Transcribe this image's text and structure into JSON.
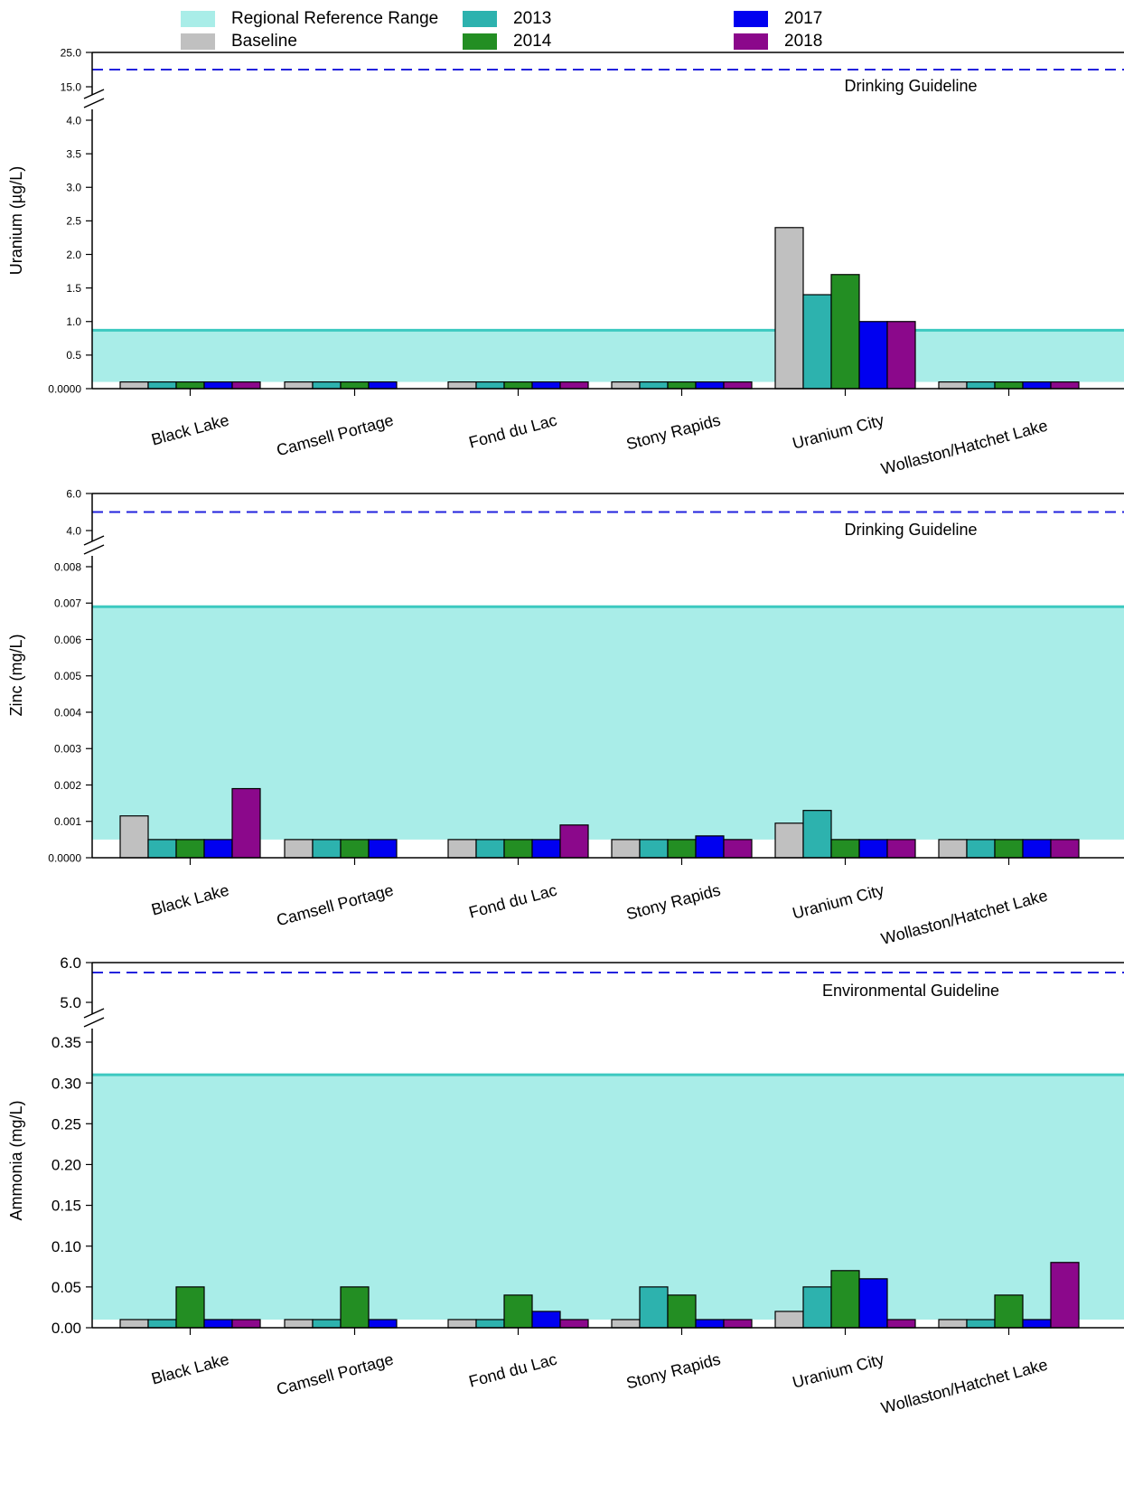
{
  "legend": {
    "items": [
      {
        "label": "Regional Reference Range",
        "color": "#A9EDE8"
      },
      {
        "label": "Baseline",
        "color": "#C0C0C0"
      },
      {
        "label": "2013",
        "color": "#2DB2AE"
      },
      {
        "label": "2014",
        "color": "#238E23"
      },
      {
        "label": "2017",
        "color": "#0000F0"
      },
      {
        "label": "2018",
        "color": "#8B088B"
      }
    ]
  },
  "colors": {
    "reference_fill": "#A9EDE8",
    "reference_line": "#3CC9C0",
    "guideline_line": "#2222DD"
  },
  "chart_data": [
    {
      "type": "bar",
      "ylabel": "Uranium (µg/L)",
      "categories": [
        "Black Lake",
        "Camsell Portage",
        "Fond du Lac",
        "Stony Rapids",
        "Uranium City",
        "Wollaston/Hatchet Lake"
      ],
      "series": [
        {
          "name": "Baseline",
          "values": [
            0.1,
            0.1,
            0.1,
            0.1,
            2.4,
            0.1
          ]
        },
        {
          "name": "2013",
          "values": [
            0.1,
            0.1,
            0.1,
            0.1,
            1.4,
            0.1
          ]
        },
        {
          "name": "2014",
          "values": [
            0.1,
            0.1,
            0.1,
            0.1,
            1.7,
            0.1
          ]
        },
        {
          "name": "2017",
          "values": [
            0.1,
            0.1,
            0.1,
            0.1,
            1.0,
            0.1
          ]
        },
        {
          "name": "2018",
          "values": [
            0.1,
            null,
            0.1,
            0.1,
            1.0,
            0.1
          ]
        }
      ],
      "reference_range": [
        0.1,
        0.87
      ],
      "guideline": {
        "label": "Drinking Guideline",
        "value": 20
      },
      "ylim_lower": [
        0,
        4.0
      ],
      "ylim_upper": [
        15.0,
        25.0
      ],
      "yticks_lower": [
        "0.0000",
        "0.5",
        "1.0",
        "1.5",
        "2.0",
        "2.5",
        "3.0",
        "3.5",
        "4.0"
      ],
      "yticks_upper": [
        "15.0",
        "25.0"
      ],
      "axis_break": true
    },
    {
      "type": "bar",
      "ylabel": "Zinc (mg/L)",
      "categories": [
        "Black Lake",
        "Camsell Portage",
        "Fond du Lac",
        "Stony Rapids",
        "Uranium City",
        "Wollaston/Hatchet Lake"
      ],
      "series": [
        {
          "name": "Baseline",
          "values": [
            0.00115,
            0.0005,
            0.0005,
            0.0005,
            0.00095,
            0.0005
          ]
        },
        {
          "name": "2013",
          "values": [
            0.0005,
            0.0005,
            0.0005,
            0.0005,
            0.0013,
            0.0005
          ]
        },
        {
          "name": "2014",
          "values": [
            0.0005,
            0.0005,
            0.0005,
            0.0005,
            0.0005,
            0.0005
          ]
        },
        {
          "name": "2017",
          "values": [
            0.0005,
            0.0005,
            0.0005,
            0.0006,
            0.0005,
            0.0005
          ]
        },
        {
          "name": "2018",
          "values": [
            0.0019,
            null,
            0.0009,
            0.0005,
            0.0005,
            0.0005
          ]
        }
      ],
      "reference_range": [
        0.0005,
        0.0069
      ],
      "guideline": {
        "label": "Drinking Guideline",
        "value": 5.0
      },
      "ylim_lower": [
        0,
        0.008
      ],
      "ylim_upper": [
        4.0,
        6.0
      ],
      "yticks_lower": [
        "0.0000",
        "0.001",
        "0.002",
        "0.003",
        "0.004",
        "0.005",
        "0.006",
        "0.007",
        "0.008"
      ],
      "yticks_upper": [
        "4.0",
        "6.0"
      ],
      "axis_break": true
    },
    {
      "type": "bar",
      "ylabel": "Ammonia (mg/L)",
      "categories": [
        "Black Lake",
        "Camsell Portage",
        "Fond du Lac",
        "Stony Rapids",
        "Uranium City",
        "Wollaston/Hatchet Lake"
      ],
      "series": [
        {
          "name": "Baseline",
          "values": [
            0.01,
            0.01,
            0.01,
            0.01,
            0.02,
            0.01
          ]
        },
        {
          "name": "2013",
          "values": [
            0.01,
            0.01,
            0.01,
            0.05,
            0.05,
            0.01
          ]
        },
        {
          "name": "2014",
          "values": [
            0.05,
            0.05,
            0.04,
            0.04,
            0.07,
            0.04
          ]
        },
        {
          "name": "2017",
          "values": [
            0.01,
            0.01,
            0.02,
            0.01,
            0.06,
            0.01
          ]
        },
        {
          "name": "2018",
          "values": [
            0.01,
            null,
            0.01,
            0.01,
            0.01,
            0.08
          ]
        }
      ],
      "reference_range": [
        0.01,
        0.31
      ],
      "guideline": {
        "label": "Environmental Guideline",
        "value": 5.75
      },
      "ylim_lower": [
        0,
        0.35
      ],
      "ylim_upper": [
        5.0,
        6.0
      ],
      "yticks_lower": [
        "0.00",
        "0.05",
        "0.10",
        "0.15",
        "0.20",
        "0.25",
        "0.30",
        "0.35"
      ],
      "yticks_upper": [
        "5.0",
        "6.0"
      ],
      "axis_break": true
    }
  ]
}
